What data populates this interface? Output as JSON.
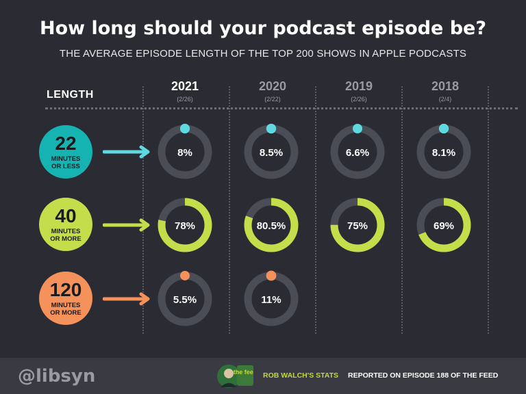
{
  "header": {
    "title": "How long should your podcast episode be?",
    "subtitle": "THE AVERAGE EPISODE LENGTH OF THE TOP 200 SHOWS IN APPLE PODCASTS",
    "length_label": "LENGTH"
  },
  "columns": [
    {
      "year": "2021",
      "date": "(2/26)"
    },
    {
      "year": "2020",
      "date": "(2/22)"
    },
    {
      "year": "2019",
      "date": "(2/26)"
    },
    {
      "year": "2018",
      "date": "(2/4)"
    }
  ],
  "rows": [
    {
      "number": "22",
      "unit_line1": "MINUTES",
      "unit_line2": "OR LESS"
    },
    {
      "number": "40",
      "unit_line1": "MINUTES",
      "unit_line2": "OR MORE"
    },
    {
      "number": "120",
      "unit_line1": "MINUTES",
      "unit_line2": "OR MORE"
    }
  ],
  "colors": {
    "background": "#2b2b33",
    "track": "#4a4d55",
    "teal": "#16b3b3",
    "teal_arc": "#5fd9e0",
    "lime": "#c3de4a",
    "orange": "#f5915a",
    "year_current": "#ffffff",
    "year_past": "#9a9aa2"
  },
  "chart_data": {
    "type": "donut-grid",
    "title": "How long should your podcast episode be?",
    "subtitle": "THE AVERAGE EPISODE LENGTH OF THE TOP 200 SHOWS IN APPLE PODCASTS",
    "categories": [
      "2021",
      "2020",
      "2019",
      "2018"
    ],
    "series": [
      {
        "name": "22 MINUTES OR LESS",
        "values": [
          8,
          8.5,
          6.6,
          8.1
        ],
        "labels": [
          "8%",
          "8.5%",
          "6.6%",
          "8.1%"
        ]
      },
      {
        "name": "40 MINUTES OR MORE",
        "values": [
          78,
          80.5,
          75,
          69
        ],
        "labels": [
          "78%",
          "80.5%",
          "75%",
          "69%"
        ]
      },
      {
        "name": "120 MINUTES OR MORE",
        "values": [
          5.5,
          11,
          null,
          null
        ],
        "labels": [
          "5.5%",
          "11%",
          "",
          ""
        ]
      }
    ]
  },
  "footer": {
    "handle": "@libsyn",
    "credit_stats": "ROB WALCH'S STATS",
    "credit_reported": "REPORTED ON EPISODE 188 OF THE FEED",
    "logo_text": "the feed"
  }
}
